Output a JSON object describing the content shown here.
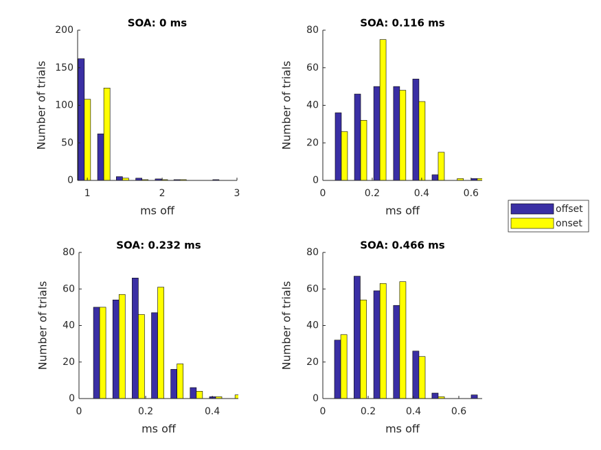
{
  "chart_data": [
    {
      "type": "bar",
      "title": "SOA: 0 ms",
      "xlabel": "ms off",
      "ylabel": "Number of trials",
      "x": [
        0.96,
        1.22,
        1.47,
        1.73,
        1.99,
        2.24,
        2.5,
        2.76
      ],
      "series": [
        {
          "name": "offset",
          "color": "#3a2fa4",
          "values": [
            162,
            62,
            5,
            3,
            2,
            1,
            0,
            1
          ]
        },
        {
          "name": "onset",
          "color": "#ffff00",
          "values": [
            108,
            123,
            3,
            1,
            1,
            1,
            0,
            0
          ]
        }
      ],
      "xlim": [
        0.87,
        3
      ],
      "xticks": [
        1,
        2,
        3
      ],
      "ylim": [
        0,
        200
      ],
      "yticks": [
        0,
        50,
        100,
        150,
        200
      ]
    },
    {
      "type": "bar",
      "title": "SOA: 0.116 ms",
      "xlabel": "ms off",
      "ylabel": "Number of trials",
      "x": [
        0.075,
        0.153,
        0.231,
        0.311,
        0.389,
        0.467,
        0.544,
        0.625
      ],
      "series": [
        {
          "color": "#3a2fa4",
          "values": [
            36,
            46,
            50,
            50,
            54,
            3,
            0,
            1
          ]
        },
        {
          "color": "#ffff00",
          "values": [
            26,
            32,
            75,
            48,
            42,
            15,
            1,
            1
          ]
        }
      ],
      "xlim": [
        0,
        0.645
      ],
      "xticks": [
        0,
        0.2,
        0.4,
        0.6
      ],
      "ylim": [
        0,
        80
      ],
      "yticks": [
        0,
        20,
        40,
        60,
        80
      ]
    },
    {
      "type": "bar",
      "title": "SOA: 0.232 ms",
      "xlabel": "ms off",
      "ylabel": "Number of trials",
      "x": [
        0.062,
        0.12,
        0.178,
        0.236,
        0.294,
        0.352,
        0.41,
        0.468
      ],
      "series": [
        {
          "color": "#3a2fa4",
          "values": [
            50,
            54,
            66,
            47,
            16,
            6,
            1,
            0
          ]
        },
        {
          "color": "#ffff00",
          "values": [
            50,
            57,
            46,
            61,
            19,
            4,
            1,
            2
          ]
        }
      ],
      "xlim": [
        0,
        0.478
      ],
      "xticks": [
        0,
        0.2,
        0.4
      ],
      "ylim": [
        0,
        80
      ],
      "yticks": [
        0,
        20,
        40,
        60,
        80
      ]
    },
    {
      "type": "bar",
      "title": "SOA: 0.466 ms",
      "xlabel": "ms off",
      "ylabel": "Number of trials",
      "x": [
        0.079,
        0.165,
        0.252,
        0.339,
        0.424,
        0.509,
        0.594,
        0.682
      ],
      "series": [
        {
          "color": "#3a2fa4",
          "values": [
            32,
            67,
            59,
            51,
            26,
            3,
            0,
            2
          ]
        },
        {
          "color": "#ffff00",
          "values": [
            35,
            54,
            63,
            64,
            23,
            1,
            0,
            0
          ]
        }
      ],
      "xlim": [
        0,
        0.703
      ],
      "xticks": [
        0,
        0.2,
        0.4,
        0.6
      ],
      "ylim": [
        0,
        80
      ],
      "yticks": [
        0,
        20,
        40,
        60,
        80
      ]
    }
  ]
}
